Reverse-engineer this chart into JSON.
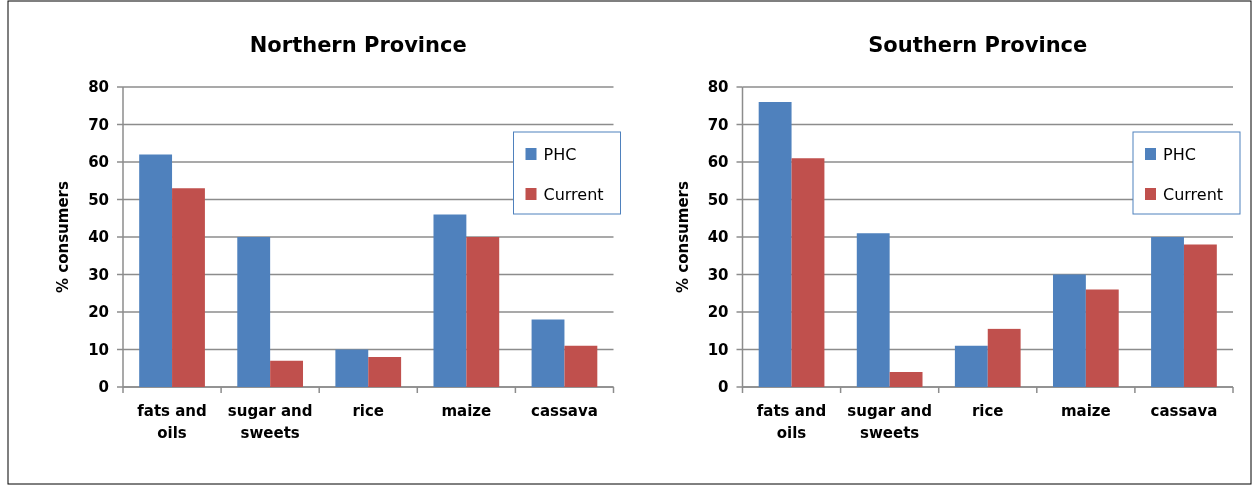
{
  "chart_data": [
    {
      "type": "bar",
      "title": "Northern Province",
      "ylabel": "% consumers",
      "categories": [
        "fats and oils",
        "sugar and sweets",
        "rice",
        "maize",
        "cassava"
      ],
      "series": [
        {
          "name": "PHC",
          "color": "#4f81bd",
          "values": [
            62,
            40,
            10,
            46,
            18
          ]
        },
        {
          "name": "Current",
          "color": "#c0504d",
          "values": [
            53,
            7,
            8,
            40,
            11
          ]
        }
      ],
      "ylim": [
        0,
        80
      ],
      "yticks": [
        0,
        10,
        20,
        30,
        40,
        50,
        60,
        70,
        80
      ],
      "grid": "y",
      "legend": "top right"
    },
    {
      "type": "bar",
      "title": "Southern Province",
      "ylabel": "% consumers",
      "categories": [
        "fats and oils",
        "sugar and sweets",
        "rice",
        "maize",
        "cassava"
      ],
      "series": [
        {
          "name": "PHC",
          "color": "#4f81bd",
          "values": [
            76,
            41,
            11,
            30,
            40
          ]
        },
        {
          "name": "Current",
          "color": "#c0504d",
          "values": [
            61,
            4,
            15.5,
            26,
            38
          ]
        }
      ],
      "ylim": [
        0,
        80
      ],
      "yticks": [
        0,
        10,
        20,
        30,
        40,
        50,
        60,
        70,
        80
      ],
      "grid": "y",
      "legend": "top right"
    }
  ]
}
